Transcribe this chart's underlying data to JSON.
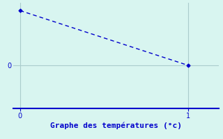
{
  "x": [
    0,
    1
  ],
  "y": [
    7,
    0
  ],
  "line_color": "#0000cc",
  "marker_color": "#0000cc",
  "background_color": "#d8f5f0",
  "grid_color": "#aacccc",
  "bottom_axis_color": "#0000cc",
  "title": "Graphe des températures (°c)",
  "title_color": "#0000cc",
  "title_fontsize": 8,
  "xlabel_ticks": [
    0,
    1
  ],
  "ylabel_ticks": [
    0
  ],
  "xlim": [
    -0.04,
    1.18
  ],
  "ylim": [
    -5.5,
    8.0
  ],
  "tick_color": "#0000cc",
  "tick_fontsize": 7
}
